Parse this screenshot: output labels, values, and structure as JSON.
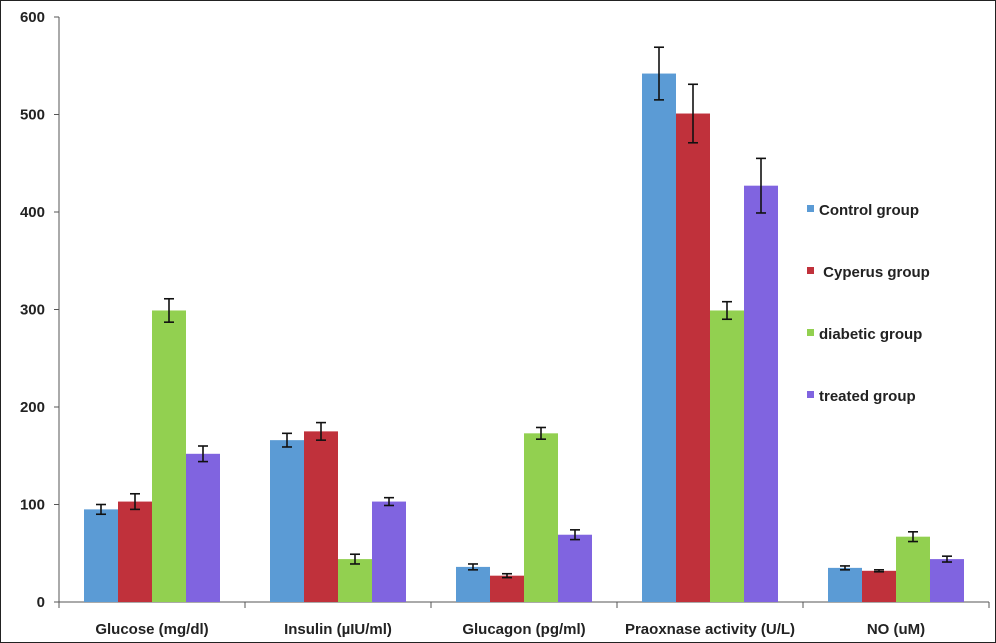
{
  "chart_data": {
    "type": "bar",
    "title": "",
    "xlabel": "",
    "ylabel": "",
    "ylim": [
      0,
      600
    ],
    "yticks": [
      0,
      100,
      200,
      300,
      400,
      500,
      600
    ],
    "grid": false,
    "legend_position": "right",
    "categories": [
      "Glucose (mg/dl)",
      "Insulin  (µIU/ml)",
      "Glucagon (pg/ml)",
      "Praoxnase activity (U/L)",
      "NO (uM)"
    ],
    "series": [
      {
        "name": "Control group",
        "color": "#5b9bd5",
        "values": [
          95,
          166,
          36,
          542,
          35
        ],
        "errors": [
          5,
          7,
          3,
          27,
          2
        ]
      },
      {
        "name": " Cyperus group",
        "color": "#c0313b",
        "values": [
          103,
          175,
          27,
          501,
          32
        ],
        "errors": [
          8,
          9,
          2,
          30,
          1
        ]
      },
      {
        "name": "diabetic group",
        "color": "#92d050",
        "values": [
          299,
          44,
          173,
          299,
          67
        ],
        "errors": [
          12,
          5,
          6,
          9,
          5
        ]
      },
      {
        "name": "treated group",
        "color": "#8064e0",
        "values": [
          152,
          103,
          69,
          427,
          44
        ],
        "errors": [
          8,
          4,
          5,
          28,
          3
        ]
      }
    ]
  }
}
